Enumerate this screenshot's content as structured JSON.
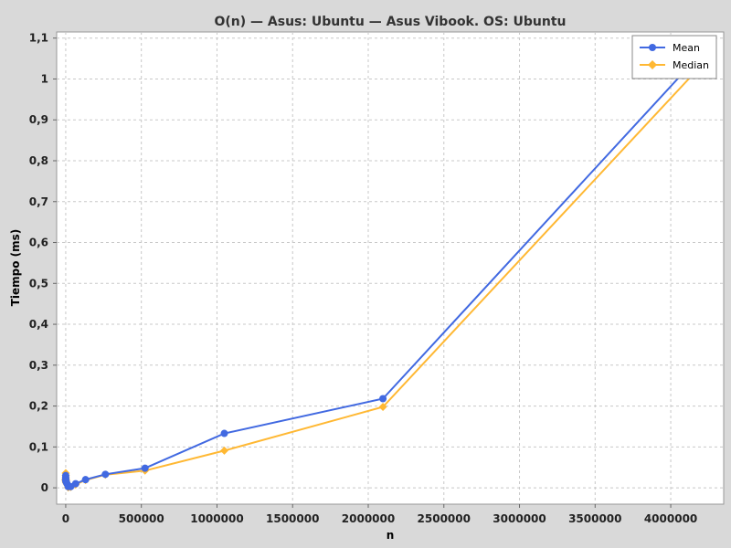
{
  "chart_data": {
    "type": "line",
    "title": "O(n) — Asus: Ubuntu — Asus Vibook. OS: Ubuntu",
    "xlabel": "n",
    "ylabel": "Tiempo (ms)",
    "xlim": [
      -60000,
      4350000
    ],
    "ylim": [
      -0.04,
      1.115
    ],
    "xticks": [
      0,
      500000,
      1000000,
      1500000,
      2000000,
      2500000,
      3000000,
      3500000,
      4000000
    ],
    "xtick_labels": [
      "0",
      "500000",
      "1000000",
      "1500000",
      "2000000",
      "2500000",
      "3000000",
      "3500000",
      "4000000"
    ],
    "yticks": [
      0,
      0.1,
      0.2,
      0.3,
      0.4,
      0.5,
      0.6,
      0.7,
      0.8,
      0.9,
      1.0,
      1.1
    ],
    "ytick_labels": [
      "0",
      "0,1",
      "0,2",
      "0,3",
      "0,4",
      "0,5",
      "0,6",
      "0,7",
      "0,8",
      "0,9",
      "1",
      "1,1"
    ],
    "grid": true,
    "legend_position": "top-right",
    "colors": {
      "Mean": "#4169e1",
      "Median": "#ffb833"
    },
    "series": [
      {
        "name": "Mean",
        "x": [
          1,
          2,
          4,
          8,
          16,
          32,
          64,
          128,
          256,
          512,
          1024,
          2048,
          4096,
          8192,
          16384,
          32768,
          65536,
          131072,
          262144,
          524288,
          1048576,
          2097152,
          4194304
        ],
        "y": [
          0.03,
          0.025,
          0.022,
          0.02,
          0.02,
          0.02,
          0.02,
          0.019,
          0.019,
          0.018,
          0.016,
          0.015,
          0.014,
          0.01,
          0.003,
          0.003,
          0.01,
          0.02,
          0.033,
          0.048,
          0.133,
          0.218,
          1.06
        ]
      },
      {
        "name": "Median",
        "x": [
          1,
          2,
          4,
          8,
          16,
          32,
          64,
          128,
          256,
          512,
          1024,
          2048,
          4096,
          8192,
          16384,
          32768,
          65536,
          131072,
          262144,
          524288,
          1048576,
          2097152,
          4194304
        ],
        "y": [
          0.036,
          0.03,
          0.025,
          0.022,
          0.02,
          0.02,
          0.02,
          0.019,
          0.018,
          0.017,
          0.015,
          0.013,
          0.012,
          0.009,
          0.001,
          0.002,
          0.008,
          0.019,
          0.032,
          0.042,
          0.091,
          0.198,
          1.03
        ]
      }
    ]
  }
}
